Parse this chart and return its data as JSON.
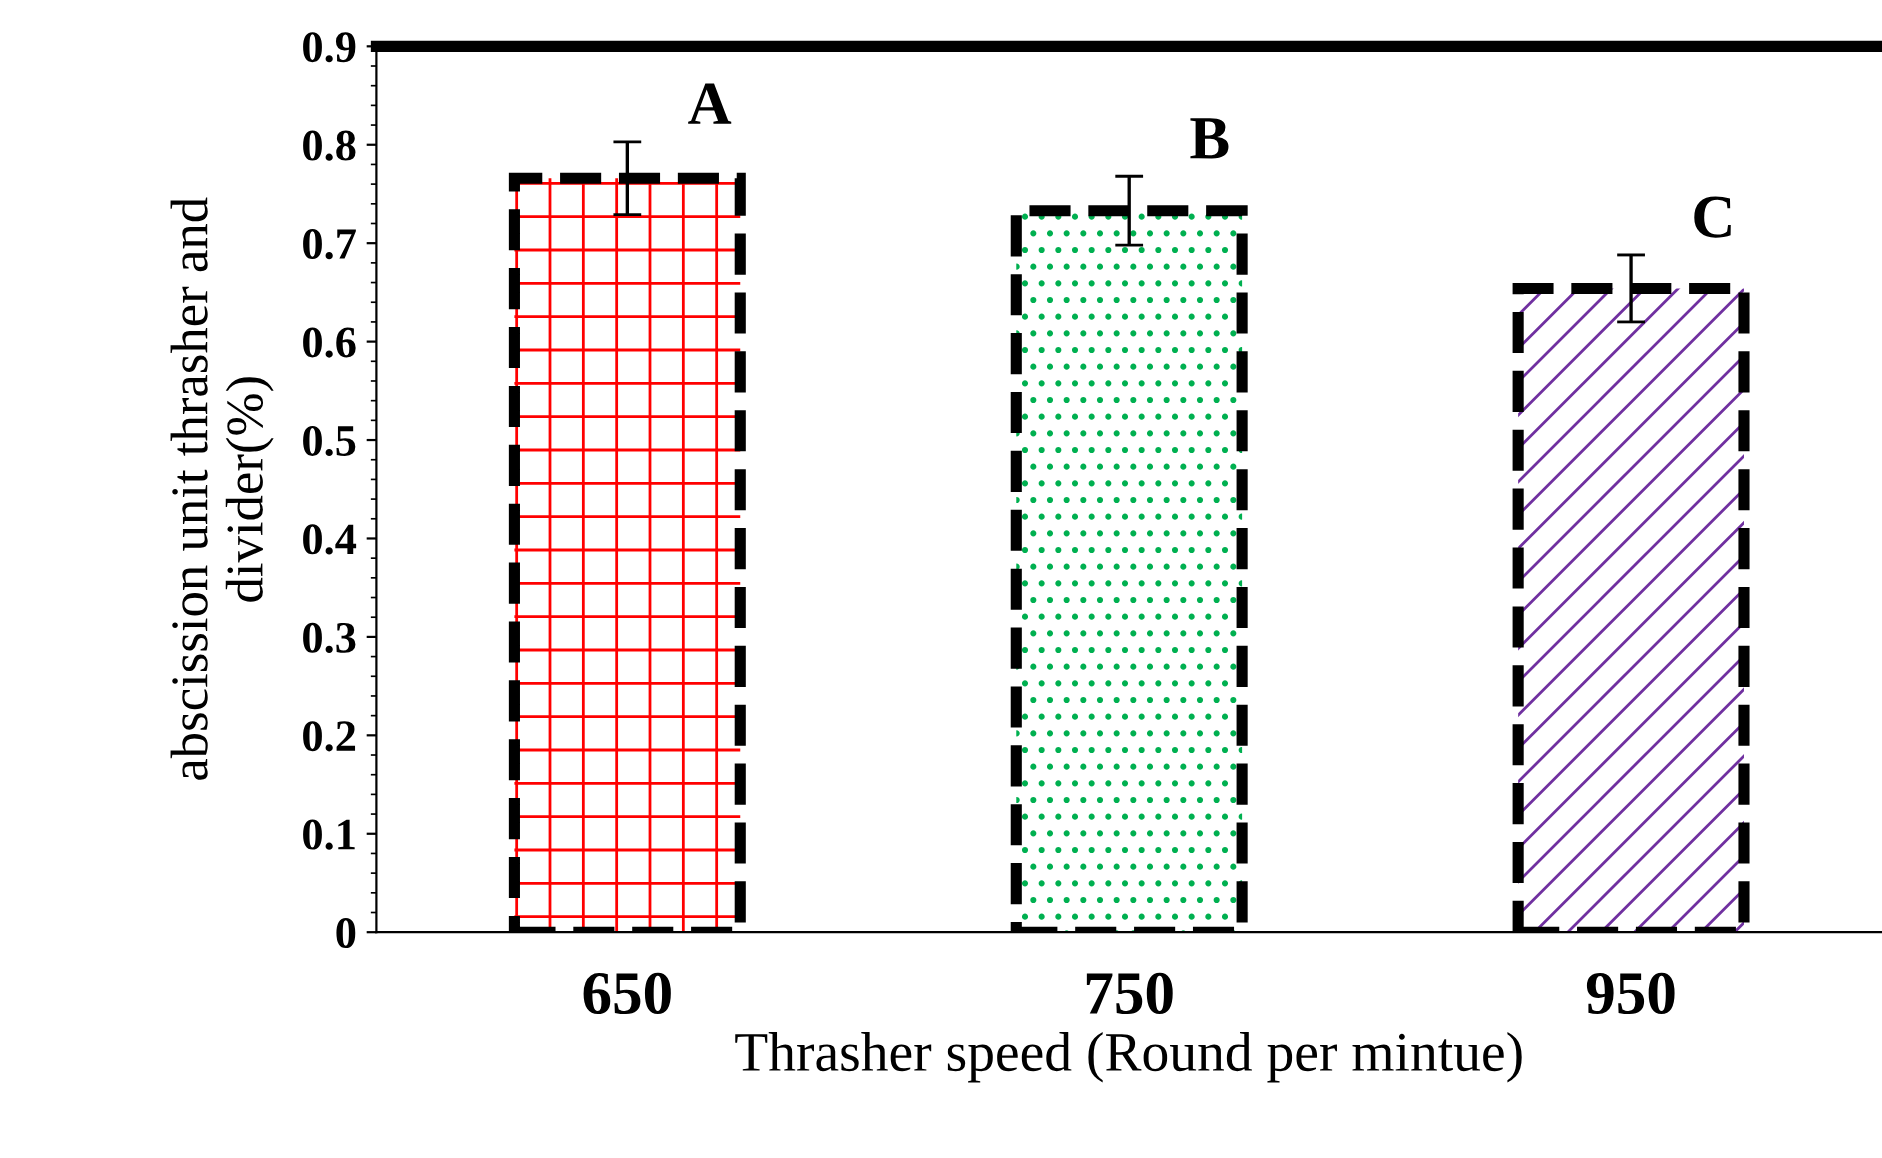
{
  "chart_data": {
    "type": "bar",
    "xlabel": "Thrasher speed (Round per mintue)",
    "ylabel": "abscission unit thrasher and\ndivider(%)",
    "categories": [
      "650",
      "750",
      "950"
    ],
    "values": [
      0.766,
      0.733,
      0.654
    ],
    "errors": [
      0.037,
      0.035,
      0.034
    ],
    "colors": [
      "#ff0000",
      "#00b050",
      "#7030a0"
    ],
    "ylim": [
      0,
      0.9
    ],
    "yticks": [
      0,
      0.1,
      0.2,
      0.3,
      0.4,
      0.5,
      0.6,
      0.7,
      0.8,
      0.9
    ],
    "annotations": [
      {
        "text": "A",
        "x": "650",
        "y": 0.766
      },
      {
        "text": "B",
        "x": "750",
        "y": 0.733
      },
      {
        "text": "C",
        "x": "950",
        "y": 0.654
      }
    ],
    "grid": false,
    "legend": false
  }
}
